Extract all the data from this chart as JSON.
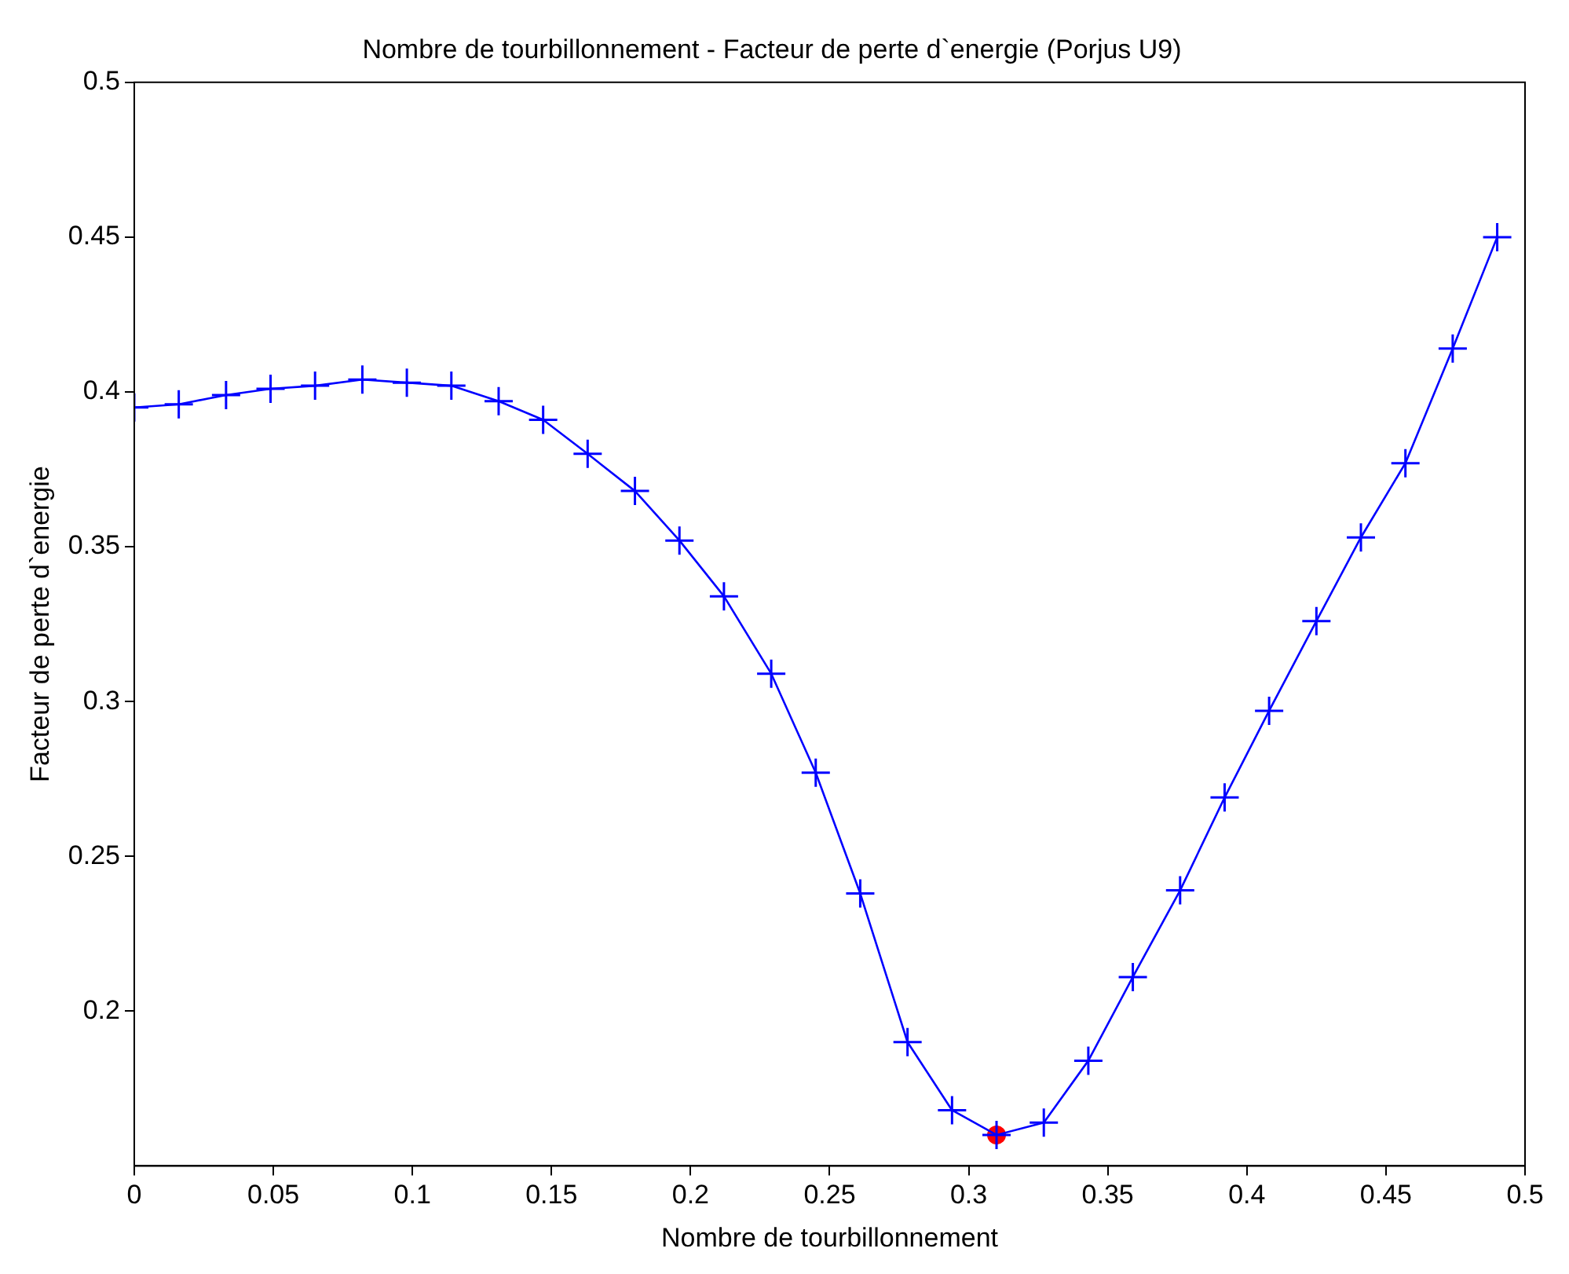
{
  "chart_data": {
    "type": "line",
    "title": "Nombre de tourbillonnement - Facteur de perte d`energie (Porjus U9)",
    "xlabel": "Nombre de tourbillonnement",
    "ylabel": "Facteur de perte d`energie",
    "x": [
      0,
      0.016,
      0.033,
      0.049,
      0.065,
      0.082,
      0.098,
      0.114,
      0.131,
      0.147,
      0.163,
      0.18,
      0.196,
      0.212,
      0.229,
      0.245,
      0.261,
      0.278,
      0.294,
      0.31,
      0.327,
      0.343,
      0.359,
      0.376,
      0.392,
      0.408,
      0.425,
      0.441,
      0.457,
      0.474,
      0.49
    ],
    "series": [
      {
        "color": "#0000ff",
        "marker": "cross",
        "line_style": "solid",
        "values": [
          0.395,
          0.396,
          0.399,
          0.401,
          0.402,
          0.404,
          0.403,
          0.402,
          0.397,
          0.391,
          0.38,
          0.368,
          0.352,
          0.334,
          0.309,
          0.277,
          0.238,
          0.19,
          0.168,
          0.16,
          0.164,
          0.184,
          0.211,
          0.239,
          0.269,
          0.297,
          0.326,
          0.353,
          0.377,
          0.414,
          0.45
        ]
      },
      {
        "type": "scatter",
        "color": "#ff0000",
        "marker": "circle",
        "x": [
          0.31
        ],
        "values": [
          0.16
        ]
      }
    ],
    "xlim": [
      0,
      0.5
    ],
    "xticks": [
      0,
      0.05,
      0.1,
      0.15,
      0.2,
      0.25,
      0.3,
      0.35,
      0.4,
      0.45,
      0.5
    ],
    "ylim": [
      0.15,
      0.5
    ],
    "yticks": [
      0.2,
      0.25,
      0.3,
      0.35,
      0.4,
      0.45,
      0.5
    ],
    "grid": false,
    "legend": false
  }
}
